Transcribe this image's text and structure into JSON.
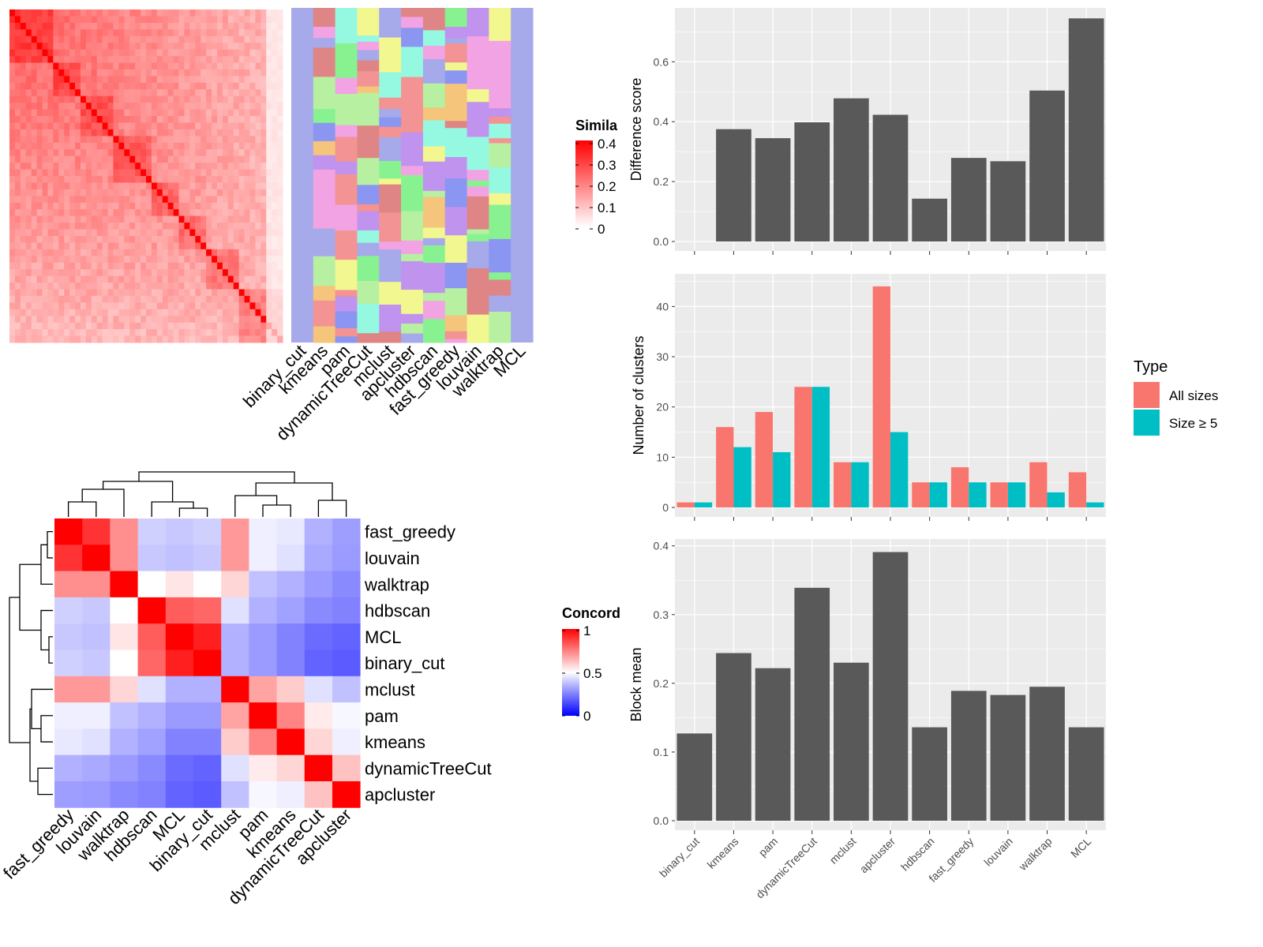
{
  "colors": {
    "panel_bg": "#ebebeb",
    "grid": "#ffffff",
    "bar": "#595959",
    "all_sizes": "#f8766d",
    "size_ge_5": "#00bfc4",
    "sim_high": "#ff0000",
    "sim_low": "#ffffff",
    "concord_high": "#ff0000",
    "concord_mid": "#ffffff",
    "concord_low": "#0000ff"
  },
  "similarity_legend": {
    "title": "Simila",
    "ticks": [
      "0.4",
      "0.3",
      "0.2",
      "0.1",
      "0"
    ]
  },
  "concordance_legend": {
    "title": "Concord",
    "ticks": [
      "1",
      "0.5",
      "0"
    ]
  },
  "annotation_methods": [
    "binary_cut",
    "kmeans",
    "pam",
    "dynamicTreeCut",
    "mclust",
    "apcluster",
    "hdbscan",
    "fast_greedy",
    "louvain",
    "walktrap",
    "MCL"
  ],
  "concordance": {
    "row_labels": [
      "fast_greedy",
      "louvain",
      "walktrap",
      "hdbscan",
      "MCL",
      "binary_cut",
      "mclust",
      "pam",
      "kmeans",
      "dynamicTreeCut",
      "apcluster"
    ],
    "col_labels": [
      "fast_greedy",
      "louvain",
      "walktrap",
      "hdbscan",
      "MCL",
      "binary_cut",
      "mclust",
      "pam",
      "kmeans",
      "dynamicTreeCut",
      "apcluster"
    ],
    "matrix": [
      [
        1.0,
        0.9,
        0.72,
        0.38,
        0.36,
        0.38,
        0.7,
        0.46,
        0.44,
        0.3,
        0.25
      ],
      [
        0.9,
        1.0,
        0.72,
        0.36,
        0.34,
        0.36,
        0.7,
        0.46,
        0.42,
        0.28,
        0.24
      ],
      [
        0.72,
        0.72,
        1.0,
        0.5,
        0.55,
        0.5,
        0.58,
        0.34,
        0.3,
        0.24,
        0.2
      ],
      [
        0.38,
        0.36,
        0.5,
        1.0,
        0.82,
        0.8,
        0.42,
        0.3,
        0.26,
        0.2,
        0.18
      ],
      [
        0.36,
        0.34,
        0.55,
        0.82,
        1.0,
        0.94,
        0.3,
        0.24,
        0.18,
        0.12,
        0.1
      ],
      [
        0.38,
        0.36,
        0.5,
        0.8,
        0.94,
        1.0,
        0.3,
        0.24,
        0.18,
        0.1,
        0.08
      ],
      [
        0.7,
        0.7,
        0.58,
        0.42,
        0.3,
        0.3,
        1.0,
        0.68,
        0.6,
        0.42,
        0.34
      ],
      [
        0.46,
        0.46,
        0.34,
        0.3,
        0.24,
        0.24,
        0.68,
        1.0,
        0.74,
        0.54,
        0.48
      ],
      [
        0.44,
        0.42,
        0.3,
        0.26,
        0.18,
        0.18,
        0.6,
        0.74,
        1.0,
        0.58,
        0.46
      ],
      [
        0.3,
        0.28,
        0.24,
        0.2,
        0.12,
        0.1,
        0.42,
        0.54,
        0.58,
        1.0,
        0.62
      ],
      [
        0.25,
        0.24,
        0.2,
        0.18,
        0.1,
        0.08,
        0.34,
        0.48,
        0.46,
        0.62,
        1.0
      ]
    ]
  },
  "type_legend": {
    "title": "Type",
    "items": [
      {
        "label": "All sizes",
        "color": "#f8766d"
      },
      {
        "label": "Size ≥ 5",
        "color": "#00bfc4"
      }
    ]
  },
  "chart_data": [
    {
      "type": "bar",
      "categories": [
        "binary_cut",
        "kmeans",
        "pam",
        "dynamicTreeCut",
        "mclust",
        "apcluster",
        "hdbscan",
        "fast_greedy",
        "louvain",
        "walktrap",
        "MCL"
      ],
      "values": [
        0,
        0.375,
        0.345,
        0.398,
        0.478,
        0.423,
        0.143,
        0.279,
        0.268,
        0.504,
        0.745
      ],
      "ylabel": "Difference score",
      "ylim": [
        0,
        0.78
      ],
      "yticks": [
        "0.0",
        "0.2",
        "0.4",
        "0.6"
      ],
      "grid": true
    },
    {
      "type": "bar",
      "categories": [
        "binary_cut",
        "kmeans",
        "pam",
        "dynamicTreeCut",
        "mclust",
        "apcluster",
        "hdbscan",
        "fast_greedy",
        "louvain",
        "walktrap",
        "MCL"
      ],
      "series": [
        {
          "name": "All sizes",
          "values": [
            1,
            16,
            19,
            24,
            9,
            44,
            5,
            8,
            5,
            9,
            7
          ]
        },
        {
          "name": "Size ≥ 5",
          "values": [
            1,
            12,
            11,
            24,
            9,
            15,
            5,
            5,
            5,
            3,
            1
          ]
        }
      ],
      "ylabel": "Number of clusters",
      "ylim": [
        0,
        46.5
      ],
      "yticks": [
        "0",
        "10",
        "20",
        "30",
        "40"
      ],
      "legend": "right",
      "grid": true
    },
    {
      "type": "bar",
      "categories": [
        "binary_cut",
        "kmeans",
        "pam",
        "dynamicTreeCut",
        "mclust",
        "apcluster",
        "hdbscan",
        "fast_greedy",
        "louvain",
        "walktrap",
        "MCL"
      ],
      "values": [
        0.127,
        0.244,
        0.222,
        0.339,
        0.23,
        0.391,
        0.136,
        0.189,
        0.183,
        0.195,
        0.136
      ],
      "ylabel": "Block mean",
      "ylim": [
        0,
        0.41
      ],
      "yticks": [
        "0.0",
        "0.1",
        "0.2",
        "0.3",
        "0.4"
      ],
      "grid": true
    }
  ]
}
